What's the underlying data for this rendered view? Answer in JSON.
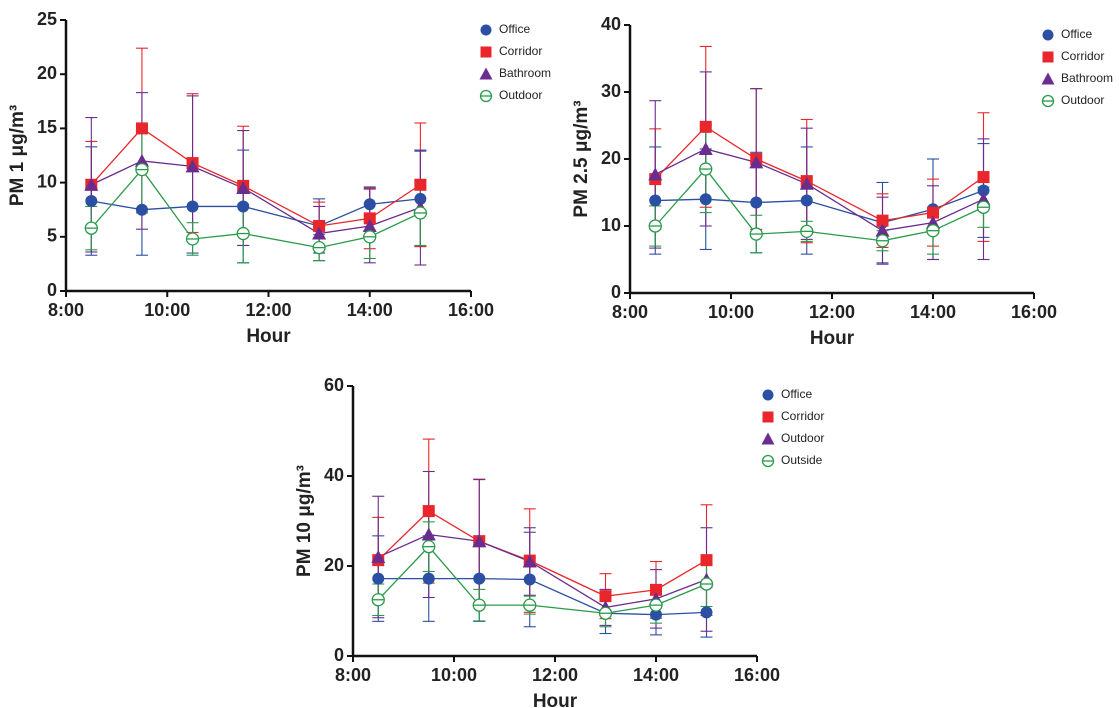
{
  "chart_data": [
    {
      "type": "line",
      "y_label": "PM 1 μg/m³",
      "x_label": "Hour",
      "x": [
        8.5,
        9.5,
        10.5,
        11.5,
        13,
        14,
        15
      ],
      "xlim": [
        8,
        16
      ],
      "xticks": [
        {
          "value": 8,
          "label": "8:00"
        },
        {
          "value": 10,
          "label": "10:00"
        },
        {
          "value": 12,
          "label": "12:00"
        },
        {
          "value": 14,
          "label": "14:00"
        },
        {
          "value": 16,
          "label": "16:00"
        }
      ],
      "ylim": [
        0,
        25
      ],
      "yticks": [
        0,
        5,
        10,
        15,
        20,
        25
      ],
      "series": [
        {
          "name": "Office",
          "color": "#2b4fa2",
          "marker": "circle",
          "values": [
            8.3,
            7.5,
            7.8,
            7.8,
            6.0,
            8.0,
            8.5
          ],
          "errors": [
            5.0,
            4.2,
            4.3,
            5.2,
            2.5,
            1.6,
            4.4
          ]
        },
        {
          "name": "Corridor",
          "color": "#e8262b",
          "marker": "square",
          "values": [
            9.8,
            15.0,
            11.8,
            9.7,
            6.0,
            6.7,
            9.8
          ],
          "errors": [
            4.0,
            7.4,
            6.4,
            5.5,
            2.2,
            2.8,
            5.7
          ]
        },
        {
          "name": "Bathroom",
          "color": "#6a2c8f",
          "marker": "triangle",
          "values": [
            9.8,
            12.0,
            11.5,
            9.5,
            5.3,
            6.0,
            7.7
          ],
          "errors": [
            6.2,
            6.3,
            6.5,
            5.3,
            2.5,
            3.4,
            5.3
          ]
        },
        {
          "name": "Outdoor",
          "color": "#2a9a4a",
          "marker": "open-circle",
          "values": [
            5.8,
            11.2,
            4.8,
            5.3,
            4.0,
            5.0,
            7.2
          ],
          "errors": [
            2.0,
            4.0,
            1.5,
            2.7,
            1.2,
            2.0,
            3.0
          ]
        }
      ]
    },
    {
      "type": "line",
      "y_label": "PM 2.5 μg/m³",
      "x_label": "Hour",
      "x": [
        8.5,
        9.5,
        10.5,
        11.5,
        13,
        14,
        15
      ],
      "xlim": [
        8,
        16
      ],
      "xticks": [
        {
          "value": 8,
          "label": "8:00"
        },
        {
          "value": 10,
          "label": "10:00"
        },
        {
          "value": 12,
          "label": "12:00"
        },
        {
          "value": 14,
          "label": "14:00"
        },
        {
          "value": 16,
          "label": "16:00"
        }
      ],
      "ylim": [
        0,
        40
      ],
      "yticks": [
        0,
        10,
        20,
        30,
        40
      ],
      "series": [
        {
          "name": "Office",
          "color": "#2b4fa2",
          "marker": "circle",
          "values": [
            13.8,
            14.0,
            13.5,
            13.8,
            10.5,
            12.5,
            15.3
          ],
          "errors": [
            8.0,
            7.5,
            7.5,
            8.0,
            6.0,
            7.5,
            7.0
          ]
        },
        {
          "name": "Corridor",
          "color": "#e8262b",
          "marker": "square",
          "values": [
            17.0,
            24.8,
            20.0,
            16.7,
            10.8,
            12.0,
            17.3
          ],
          "errors": [
            7.5,
            12.0,
            10.5,
            9.2,
            4.0,
            5.0,
            9.6
          ]
        },
        {
          "name": "Bathroom",
          "color": "#6a2c8f",
          "marker": "triangle",
          "values": [
            17.7,
            21.5,
            19.5,
            16.3,
            9.3,
            10.5,
            14.0
          ],
          "errors": [
            11.0,
            11.5,
            11.0,
            8.3,
            5.0,
            5.5,
            9.0
          ]
        },
        {
          "name": "Outdoor",
          "color": "#2a9a4a",
          "marker": "open-circle",
          "values": [
            10.0,
            18.5,
            8.8,
            9.2,
            7.8,
            9.3,
            12.8
          ],
          "errors": [
            3.0,
            6.5,
            2.8,
            1.5,
            1.5,
            3.5,
            3.0
          ]
        }
      ]
    },
    {
      "type": "line",
      "y_label": "PM 10 μg/m³",
      "x_label": "Hour",
      "x": [
        8.5,
        9.5,
        10.5,
        11.5,
        13,
        14,
        15
      ],
      "xlim": [
        8,
        16
      ],
      "xticks": [
        {
          "value": 8,
          "label": "8:00"
        },
        {
          "value": 10,
          "label": "10:00"
        },
        {
          "value": 12,
          "label": "12:00"
        },
        {
          "value": 14,
          "label": "14:00"
        },
        {
          "value": 16,
          "label": "16:00"
        }
      ],
      "ylim": [
        0,
        60
      ],
      "yticks": [
        0,
        20,
        40,
        60
      ],
      "series": [
        {
          "name": "Office",
          "color": "#2b4fa2",
          "marker": "circle",
          "values": [
            17.2,
            17.2,
            17.2,
            17.0,
            9.5,
            9.2,
            9.7
          ],
          "errors": [
            9.5,
            9.5,
            9.5,
            10.5,
            4.5,
            4.5,
            5.5
          ]
        },
        {
          "name": "Corridor",
          "color": "#e8262b",
          "marker": "square",
          "values": [
            21.3,
            32.2,
            25.5,
            21.2,
            13.3,
            14.7,
            21.3
          ],
          "errors": [
            9.5,
            16.0,
            13.8,
            11.5,
            5.0,
            6.3,
            12.3
          ]
        },
        {
          "name": "Outdoor",
          "color": "#6a2c8f",
          "marker": "triangle",
          "values": [
            22.0,
            27.0,
            25.5,
            21.0,
            10.8,
            12.7,
            17.0
          ],
          "errors": [
            13.5,
            14.0,
            13.7,
            7.5,
            4.0,
            6.5,
            11.5
          ]
        },
        {
          "name": "Outside",
          "color": "#2a9a4a",
          "marker": "open-circle",
          "values": [
            12.5,
            24.3,
            11.3,
            11.3,
            9.5,
            11.3,
            16.0
          ],
          "errors": [
            3.5,
            5.5,
            3.5,
            2.0,
            3.0,
            4.0,
            5.0
          ]
        }
      ]
    }
  ]
}
